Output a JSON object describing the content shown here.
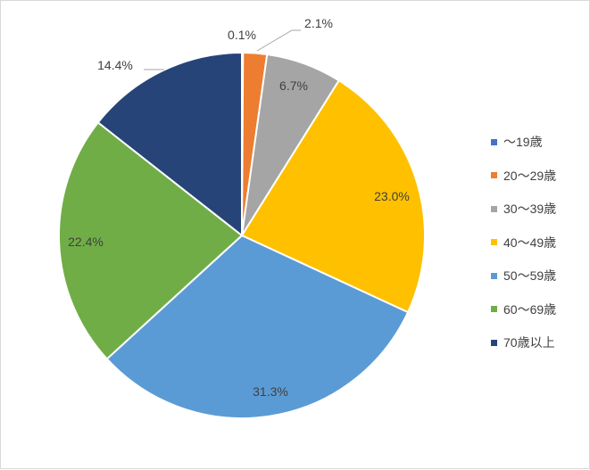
{
  "chart_data": {
    "type": "pie",
    "title": "",
    "categories": [
      "～19歳",
      "20～29歳",
      "30～39歳",
      "40～49歳",
      "50～59歳",
      "60～69歳",
      "70歳以上"
    ],
    "values": [
      0.1,
      2.1,
      6.7,
      23.0,
      31.3,
      22.4,
      14.4
    ],
    "value_labels": [
      "0.1%",
      "2.1%",
      "6.7%",
      "23.0%",
      "31.3%",
      "22.4%",
      "14.4%"
    ],
    "colors": [
      "#4472c4",
      "#ed7d31",
      "#a5a5a5",
      "#ffc000",
      "#5b9bd5",
      "#70ad47",
      "#264478"
    ],
    "start_angle": "12 o'clock",
    "direction": "clockwise",
    "legend_position": "right"
  }
}
